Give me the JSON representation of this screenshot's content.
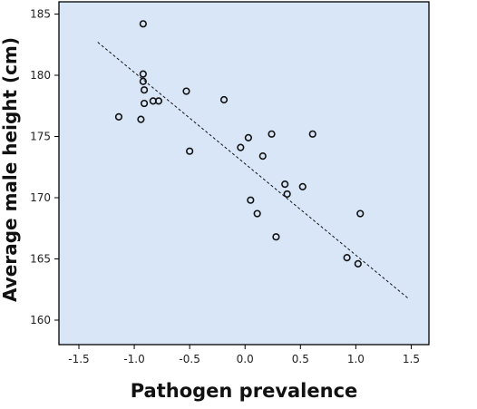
{
  "chart_data": {
    "type": "scatter",
    "xlabel": "Pathogen prevalence",
    "ylabel": "Average male height (cm)",
    "xlim": [
      -1.68,
      1.66
    ],
    "ylim": [
      158,
      186
    ],
    "x_ticks": [
      -1.5,
      -1.0,
      -0.5,
      0.0,
      0.5,
      1.0,
      1.5
    ],
    "x_tick_labels": [
      "-1.5",
      "-1.0",
      "-0.5",
      "0.0",
      "0.5",
      "1.0",
      "1.5"
    ],
    "y_ticks": [
      160,
      165,
      170,
      175,
      180,
      185
    ],
    "y_tick_labels": [
      "160",
      "165",
      "170",
      "175",
      "180",
      "185"
    ],
    "grid": false,
    "legend": "none",
    "points": [
      {
        "x": -0.92,
        "y": 184.2
      },
      {
        "x": -0.92,
        "y": 180.1
      },
      {
        "x": -0.92,
        "y": 179.5
      },
      {
        "x": -0.91,
        "y": 178.8
      },
      {
        "x": -0.91,
        "y": 177.7
      },
      {
        "x": -0.83,
        "y": 177.9
      },
      {
        "x": -0.78,
        "y": 177.9
      },
      {
        "x": -0.53,
        "y": 178.7
      },
      {
        "x": -0.19,
        "y": 178.0
      },
      {
        "x": -1.14,
        "y": 176.6
      },
      {
        "x": -0.94,
        "y": 176.4
      },
      {
        "x": -0.5,
        "y": 173.8
      },
      {
        "x": 0.03,
        "y": 174.9
      },
      {
        "x": -0.04,
        "y": 174.1
      },
      {
        "x": 0.24,
        "y": 175.2
      },
      {
        "x": 0.61,
        "y": 175.2
      },
      {
        "x": 0.16,
        "y": 173.4
      },
      {
        "x": 0.36,
        "y": 171.1
      },
      {
        "x": 0.38,
        "y": 170.3
      },
      {
        "x": 0.52,
        "y": 170.9
      },
      {
        "x": 0.05,
        "y": 169.8
      },
      {
        "x": 0.11,
        "y": 168.7
      },
      {
        "x": 1.04,
        "y": 168.7
      },
      {
        "x": 0.28,
        "y": 166.8
      },
      {
        "x": 0.92,
        "y": 165.1
      },
      {
        "x": 1.02,
        "y": 164.6
      }
    ],
    "trend_line": {
      "x": [
        -1.33,
        1.47
      ],
      "y": [
        182.7,
        161.8
      ]
    },
    "colors": {
      "plot_background": "#d8e6f8",
      "marker": "#111111",
      "trend_line": "#111111"
    }
  }
}
